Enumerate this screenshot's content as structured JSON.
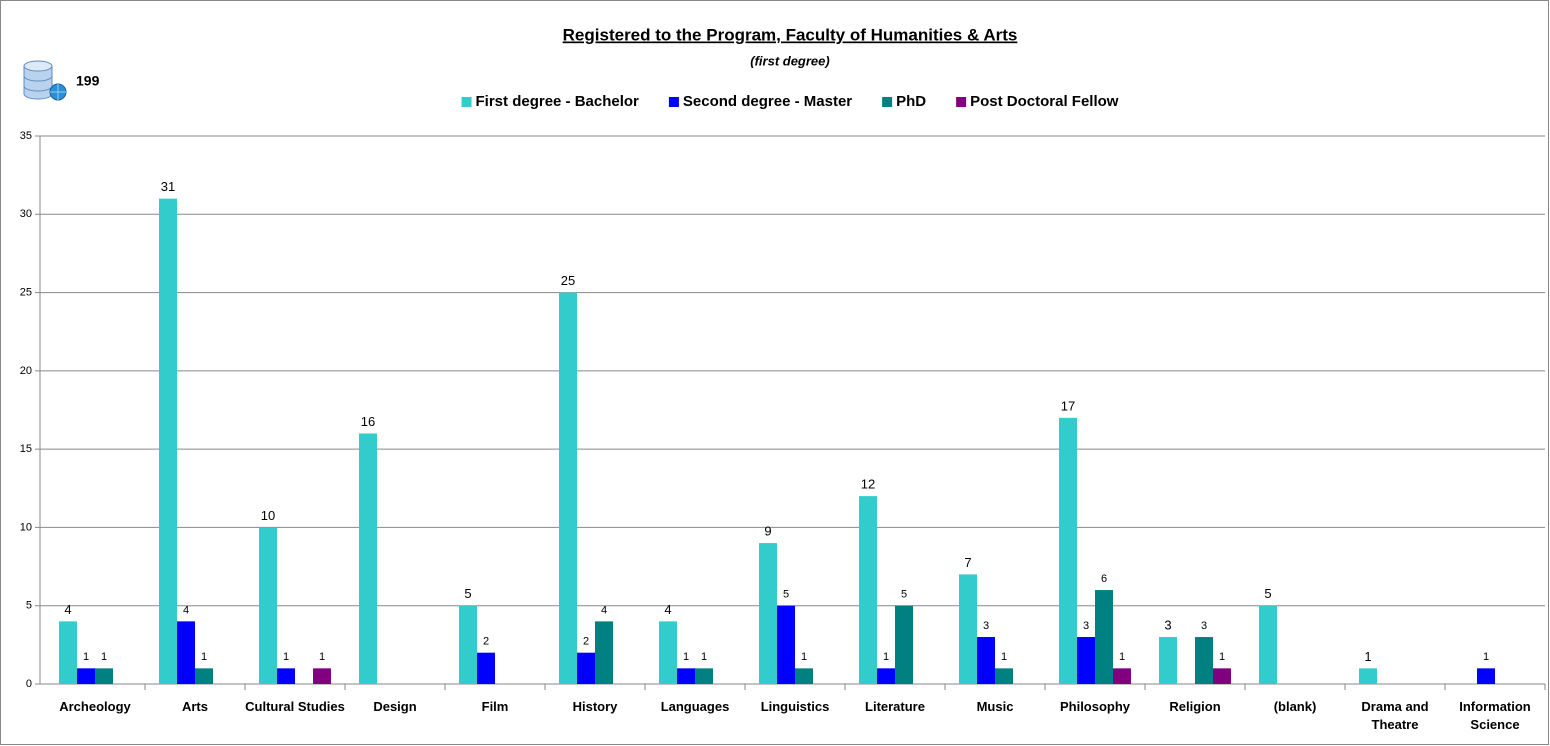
{
  "chart_data": {
    "type": "bar",
    "title": "Registered to the Program, Faculty of Humanities & Arts",
    "subtitle": "(first degree)",
    "total": "199",
    "categories": [
      "Archeology",
      "Arts",
      "Cultural Studies",
      "Design",
      "Film",
      "History",
      "Languages",
      "Linguistics",
      "Literature",
      "Music",
      "Philosophy",
      "Religion",
      "(blank)",
      "Drama and Theatre",
      "Information Science"
    ],
    "series": [
      {
        "name": "First degree - Bachelor",
        "color": "#33cccc",
        "values": [
          4,
          31,
          10,
          16,
          5,
          25,
          4,
          9,
          12,
          7,
          17,
          3,
          5,
          1,
          null
        ]
      },
      {
        "name": "Second degree - Master",
        "color": "#0000ff",
        "values": [
          1,
          4,
          1,
          null,
          2,
          2,
          1,
          5,
          1,
          3,
          3,
          null,
          null,
          null,
          1
        ]
      },
      {
        "name": "PhD",
        "color": "#008080",
        "values": [
          1,
          1,
          null,
          null,
          null,
          4,
          1,
          1,
          5,
          1,
          6,
          3,
          null,
          null,
          null
        ]
      },
      {
        "name": "Post Doctoral Fellow",
        "color": "#800080",
        "values": [
          null,
          null,
          1,
          null,
          null,
          null,
          null,
          null,
          null,
          null,
          1,
          1,
          null,
          null,
          null
        ]
      }
    ],
    "ylim": [
      0,
      35
    ],
    "yticks": [
      0,
      5,
      10,
      15,
      20,
      25,
      30,
      35
    ],
    "grid": true,
    "legend": "top"
  }
}
